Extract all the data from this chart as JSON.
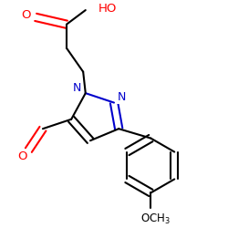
{
  "bg": "#ffffff",
  "bc": "#000000",
  "nc": "#0000cc",
  "oc": "#ff0000",
  "lw": 1.5,
  "dbo": 0.018,
  "fs": 9.0,
  "figsize": [
    2.5,
    2.5
  ],
  "dpi": 100,
  "xlim": [
    0.05,
    0.95
  ],
  "ylim": [
    0.05,
    1.0
  ]
}
